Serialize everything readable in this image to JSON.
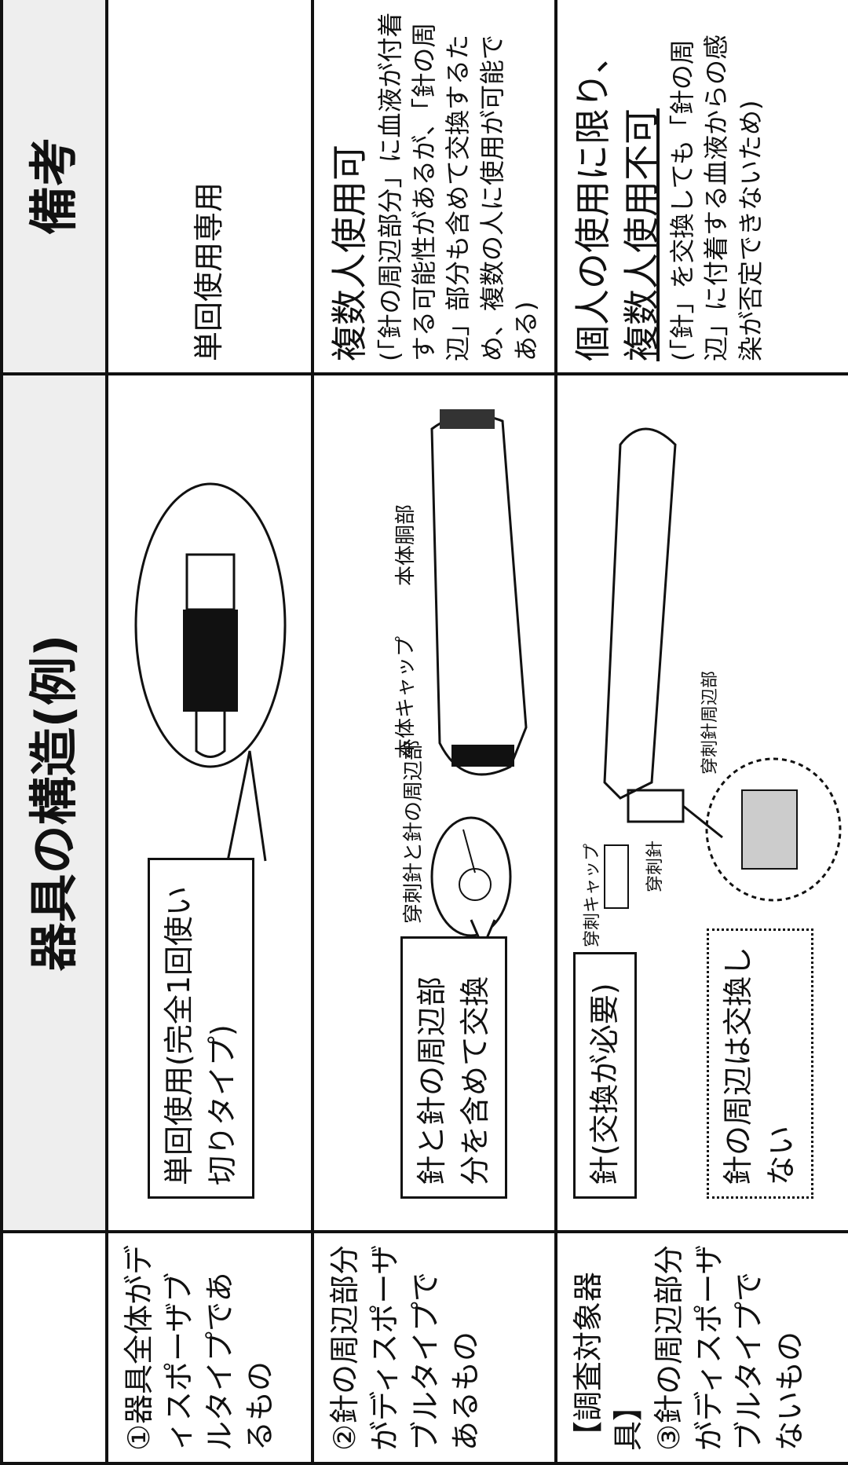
{
  "header": {
    "structure": "器具の構造(例)",
    "remarks": "備考"
  },
  "rows": [
    {
      "description": [
        "①器具全体がディスポーザブルタイプであるもの"
      ],
      "callouts": [
        "単回使用(完全1回使い切りタイプ)"
      ],
      "labels": [],
      "remarks": [
        "単回使用専用"
      ]
    },
    {
      "description": [
        "②針の周辺部分がディスポーザブルタイプであるもの"
      ],
      "callouts": [
        "針と針の周辺部分を含めて交換"
      ],
      "labels": [
        "穿刺針と針の周辺部",
        "本体キャップ",
        "本体胴部"
      ],
      "remarks": [
        "複数人使用可",
        "(「針の周辺部分」に血液が付着する可能性があるが、「針の周辺」部分も含めて交換するため、複数の人に使用が可能である)"
      ]
    },
    {
      "description": [
        "【調査対象器具】",
        "③針の周辺部分がディスポーザブルタイプでないもの"
      ],
      "callouts": [
        "針(交換が必要)",
        "針の周辺は交換しない"
      ],
      "labels": [
        "穿刺キャップ",
        "穿刺針",
        "穿刺針周辺部"
      ],
      "remarks": [
        "個人の使用に限り、",
        "複数人使用不可",
        "(「針」を交換しても「針の周辺」に付着する血液からの感染が否定できないため)"
      ]
    }
  ]
}
